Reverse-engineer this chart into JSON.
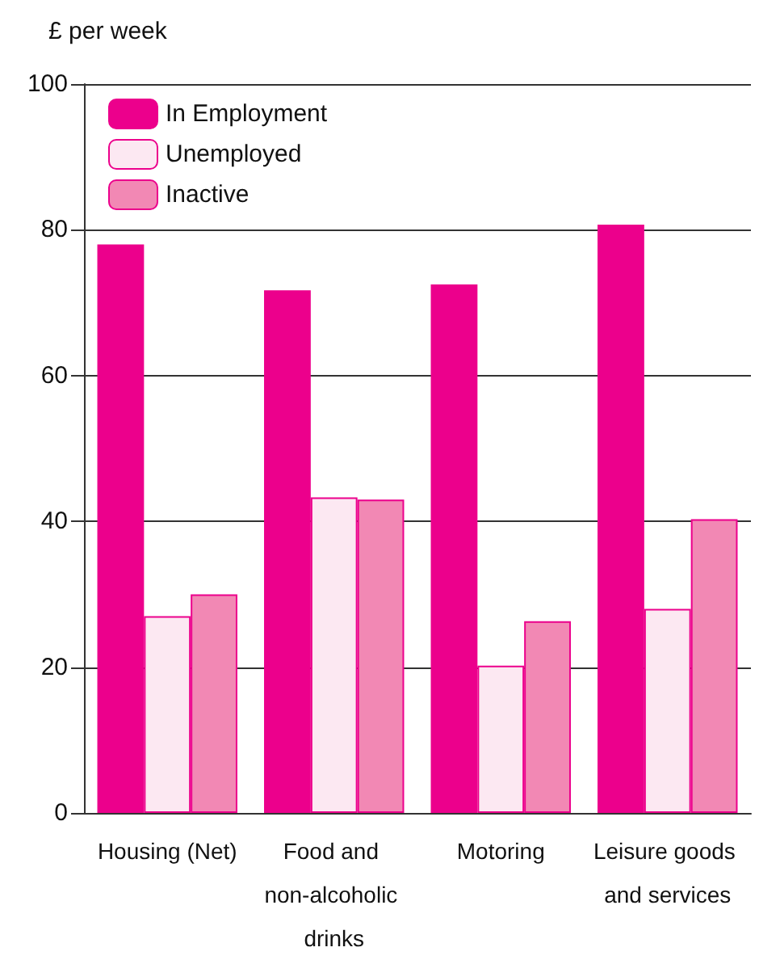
{
  "chart_data": {
    "type": "bar",
    "ylabel": "£ per week",
    "categories": [
      "Housing (Net)",
      "Food and non-alcoholic drinks",
      "Motoring",
      "Leisure goods and services"
    ],
    "series": [
      {
        "name": "In Employment",
        "color": "#ec008c",
        "values": [
          78,
          71.7,
          72.5,
          80.7
        ]
      },
      {
        "name": "Unemployed",
        "color": "#fce8f2",
        "values": [
          27,
          43.3,
          20.2,
          28
        ]
      },
      {
        "name": "Inactive",
        "color": "#f288b4",
        "values": [
          30,
          43,
          26.3,
          40.3
        ]
      }
    ],
    "ylim": [
      0,
      100
    ],
    "yticks": [
      0,
      20,
      40,
      60,
      80,
      100
    ],
    "grid": "y",
    "legend": "top left"
  }
}
